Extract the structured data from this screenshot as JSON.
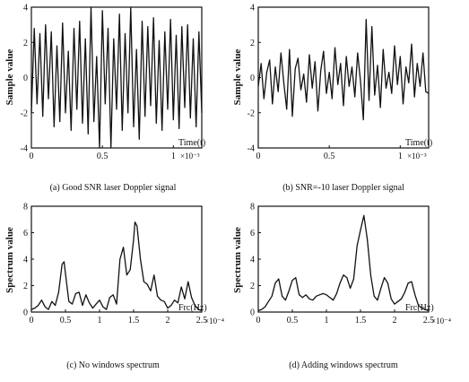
{
  "chart_data": [
    {
      "panel": "a",
      "type": "line",
      "caption": "(a) Good SNR laser Doppler signal",
      "ylabel": "Sample value",
      "xlabel": "Time(t)",
      "x_multiplier": "×10⁻³",
      "xlim": [
        0,
        1.2
      ],
      "ylim": [
        -4,
        4
      ],
      "xticks": [
        0,
        0.5,
        1
      ],
      "xtick_labels": [
        "0",
        "0.5",
        "1"
      ],
      "yticks": [
        -4,
        -2,
        0,
        2,
        4
      ],
      "ytick_labels": [
        "-4",
        "-2",
        "0",
        "2",
        "4"
      ],
      "series": [
        {
          "x": [
            0,
            0.02,
            0.04,
            0.06,
            0.08,
            0.1,
            0.12,
            0.14,
            0.16,
            0.18,
            0.2,
            0.22,
            0.24,
            0.26,
            0.28,
            0.3,
            0.32,
            0.34,
            0.36,
            0.38,
            0.4,
            0.42,
            0.44,
            0.46,
            0.48,
            0.5,
            0.52,
            0.54,
            0.56,
            0.58,
            0.6,
            0.62,
            0.64,
            0.66,
            0.68,
            0.7,
            0.72,
            0.74,
            0.76,
            0.78,
            0.8,
            0.82,
            0.84,
            0.86,
            0.88,
            0.9,
            0.92,
            0.94,
            0.96,
            0.98,
            1,
            1.02,
            1.04,
            1.06,
            1.08,
            1.1,
            1.12,
            1.14,
            1.16,
            1.18,
            1.2
          ],
          "y": [
            -2,
            2.8,
            -1.5,
            2.5,
            -2.2,
            3,
            -1.2,
            2.6,
            -2.8,
            1.8,
            -2.5,
            3.1,
            -2,
            1.5,
            -3,
            2.8,
            -1.8,
            3.2,
            -2.6,
            2.2,
            -3.2,
            4,
            -2.5,
            1.2,
            -4,
            3.8,
            -1.5,
            2.8,
            -4,
            2.2,
            -1.8,
            3.6,
            -3,
            2.5,
            -2,
            4,
            -2.8,
            1.6,
            -3.5,
            3.2,
            -2.2,
            2.9,
            -1.6,
            3.4,
            -2.6,
            2.1,
            -3,
            2.6,
            -1.8,
            3.3,
            -2.4,
            2.4,
            -2.9,
            2.9,
            -1.7,
            3,
            -2.3,
            2.2,
            -2.8,
            2.6,
            -2
          ]
        }
      ]
    },
    {
      "panel": "b",
      "type": "line",
      "caption": "(b) SNR=-10 laser Doppler signal",
      "ylabel": "Sample value",
      "xlabel": "Time(t)",
      "x_multiplier": "×10⁻³",
      "xlim": [
        0,
        1.2
      ],
      "ylim": [
        -4,
        4
      ],
      "xticks": [
        0,
        0.5,
        1
      ],
      "xtick_labels": [
        "0",
        "0.5",
        "1"
      ],
      "yticks": [
        -4,
        -2,
        0,
        2,
        4
      ],
      "ytick_labels": [
        "-4",
        "-2",
        "0",
        "2",
        "4"
      ],
      "series": [
        {
          "x": [
            0,
            0.02,
            0.04,
            0.06,
            0.08,
            0.1,
            0.12,
            0.14,
            0.16,
            0.18,
            0.2,
            0.22,
            0.24,
            0.26,
            0.28,
            0.3,
            0.32,
            0.34,
            0.36,
            0.38,
            0.4,
            0.42,
            0.44,
            0.46,
            0.48,
            0.5,
            0.52,
            0.54,
            0.56,
            0.58,
            0.6,
            0.62,
            0.64,
            0.66,
            0.68,
            0.7,
            0.72,
            0.74,
            0.76,
            0.78,
            0.8,
            0.82,
            0.84,
            0.86,
            0.88,
            0.9,
            0.92,
            0.94,
            0.96,
            0.98,
            1,
            1.02,
            1.04,
            1.06,
            1.08,
            1.1,
            1.12,
            1.14,
            1.16,
            1.18,
            1.2
          ],
          "y": [
            -0.5,
            0.8,
            -1.2,
            0.3,
            1,
            -1.5,
            0.6,
            -0.8,
            1.4,
            -0.3,
            -1.8,
            1.6,
            -2.2,
            0.5,
            1.1,
            -0.7,
            0.2,
            -1.4,
            1.3,
            -0.6,
            0.9,
            -1.9,
            0.4,
            1.5,
            -0.9,
            0.3,
            -1.2,
            1.7,
            -0.4,
            0.8,
            -1.6,
            1.2,
            -0.5,
            0.6,
            -1.1,
            1.4,
            -0.2,
            -2.4,
            3.3,
            -1.3,
            2.9,
            -1,
            0.7,
            -1.7,
            1.6,
            -0.6,
            0.3,
            -0.9,
            1.8,
            -0.4,
            1.2,
            -1.5,
            0.6,
            -0.3,
            1.9,
            -1.1,
            0.8,
            -0.5,
            1.4,
            -0.8,
            -0.9
          ]
        }
      ]
    },
    {
      "panel": "c",
      "type": "line",
      "caption": "(c) No windows spectrum",
      "ylabel": "Spectrum value",
      "xlabel": "Frc(Hz)",
      "x_multiplier": "×10⁻⁴",
      "xlim": [
        0,
        2.5
      ],
      "ylim": [
        0,
        8
      ],
      "xticks": [
        0,
        0.5,
        1,
        1.5,
        2,
        2.5
      ],
      "xtick_labels": [
        "0",
        "0.5",
        "1",
        "1.5",
        "2",
        "2.5"
      ],
      "yticks": [
        0,
        2,
        4,
        6,
        8
      ],
      "ytick_labels": [
        "0",
        "2",
        "4",
        "6",
        "8"
      ],
      "series": [
        {
          "x": [
            0,
            0.05,
            0.1,
            0.15,
            0.2,
            0.25,
            0.3,
            0.35,
            0.4,
            0.45,
            0.48,
            0.5,
            0.55,
            0.6,
            0.65,
            0.7,
            0.75,
            0.8,
            0.85,
            0.9,
            0.95,
            1,
            1.05,
            1.1,
            1.15,
            1.2,
            1.25,
            1.3,
            1.35,
            1.4,
            1.45,
            1.5,
            1.52,
            1.55,
            1.6,
            1.65,
            1.7,
            1.75,
            1.8,
            1.85,
            1.9,
            1.95,
            2,
            2.05,
            2.1,
            2.15,
            2.2,
            2.25,
            2.3,
            2.35,
            2.4,
            2.45,
            2.5
          ],
          "y": [
            0.2,
            0.3,
            0.5,
            0.9,
            0.4,
            0.2,
            0.8,
            0.5,
            1.5,
            3.6,
            3.8,
            2.9,
            0.8,
            0.6,
            1.4,
            1.5,
            0.5,
            1.3,
            0.7,
            0.3,
            0.6,
            0.9,
            0.4,
            0.2,
            1.1,
            1.3,
            0.6,
            4,
            4.9,
            2.8,
            3.2,
            5.5,
            6.8,
            6.5,
            4,
            2.3,
            2.1,
            1.6,
            2.8,
            1.2,
            0.9,
            0.8,
            0.3,
            0.5,
            0.9,
            0.7,
            1.9,
            1,
            2.3,
            1.1,
            0.5,
            0.2,
            0.1
          ]
        }
      ]
    },
    {
      "panel": "d",
      "type": "line",
      "caption": "(d) Adding windows spectrum",
      "ylabel": "Spectrum value",
      "xlabel": "Frc(Hz)",
      "x_multiplier": "×10⁻⁴",
      "xlim": [
        0,
        2.5
      ],
      "ylim": [
        0,
        8
      ],
      "xticks": [
        0,
        0.5,
        1,
        1.5,
        2,
        2.5
      ],
      "xtick_labels": [
        "0",
        "0.5",
        "1",
        "1.5",
        "2",
        "2.5"
      ],
      "yticks": [
        0,
        2,
        4,
        6,
        8
      ],
      "ytick_labels": [
        "0",
        "2",
        "4",
        "6",
        "8"
      ],
      "series": [
        {
          "x": [
            0,
            0.05,
            0.1,
            0.15,
            0.2,
            0.25,
            0.3,
            0.35,
            0.4,
            0.45,
            0.5,
            0.55,
            0.6,
            0.65,
            0.7,
            0.75,
            0.8,
            0.85,
            0.9,
            0.95,
            1,
            1.05,
            1.1,
            1.15,
            1.2,
            1.25,
            1.3,
            1.35,
            1.4,
            1.45,
            1.5,
            1.55,
            1.6,
            1.65,
            1.7,
            1.75,
            1.8,
            1.85,
            1.9,
            1.95,
            2,
            2.05,
            2.1,
            2.15,
            2.2,
            2.25,
            2.3,
            2.35,
            2.4,
            2.45,
            2.5
          ],
          "y": [
            0.1,
            0.2,
            0.4,
            0.8,
            1.2,
            2.2,
            2.5,
            1.2,
            0.9,
            1.6,
            2.4,
            2.6,
            1.3,
            1.1,
            1.3,
            1,
            0.9,
            1.2,
            1.3,
            1.4,
            1.3,
            1.1,
            0.9,
            1.4,
            2.2,
            2.8,
            2.6,
            1.8,
            2.5,
            5,
            6.2,
            7.3,
            5.5,
            2.8,
            1.2,
            0.9,
            1.8,
            2.6,
            2.2,
            1,
            0.6,
            0.8,
            1,
            1.5,
            2.2,
            2.3,
            1.3,
            0.5,
            0.3,
            0.2,
            0.1
          ]
        }
      ]
    }
  ]
}
